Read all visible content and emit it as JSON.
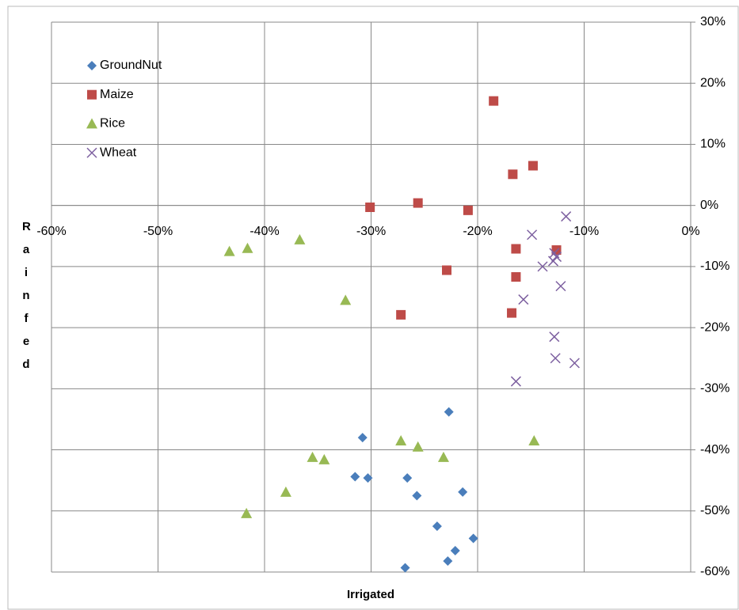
{
  "chart_data": {
    "type": "scatter",
    "x_label": "Irrigated",
    "y_label": "Rainfed",
    "xlim": [
      -60,
      0
    ],
    "ylim": [
      -60,
      30
    ],
    "xticks": [
      {
        "value": -60,
        "label": "-60%"
      },
      {
        "value": -50,
        "label": "-50%"
      },
      {
        "value": -40,
        "label": "-40%"
      },
      {
        "value": -30,
        "label": "-30%"
      },
      {
        "value": -20,
        "label": "-20%"
      },
      {
        "value": -10,
        "label": "-10%"
      },
      {
        "value": 0,
        "label": "0%"
      }
    ],
    "yticks": [
      {
        "value": -60,
        "label": "-60%"
      },
      {
        "value": -50,
        "label": "-50%"
      },
      {
        "value": -40,
        "label": "-40%"
      },
      {
        "value": -30,
        "label": "-30%"
      },
      {
        "value": -20,
        "label": "-20%"
      },
      {
        "value": -10,
        "label": "-10%"
      },
      {
        "value": 0,
        "label": "0%"
      },
      {
        "value": 10,
        "label": "10%"
      },
      {
        "value": 20,
        "label": "20%"
      },
      {
        "value": 30,
        "label": "30%"
      }
    ],
    "grid": true,
    "legend": "upper left",
    "series": [
      {
        "name": "GroundNut",
        "color": "#4a7ebb",
        "marker": "diamond",
        "x": [
          -22.7,
          -30.8,
          -31.5,
          -30.3,
          -26.6,
          -25.7,
          -21.4,
          -23.8,
          -20.4,
          -22.1,
          -22.8,
          -26.8
        ],
        "values": [
          -33.8,
          -38.0,
          -44.4,
          -44.6,
          -44.6,
          -47.5,
          -46.9,
          -52.5,
          -54.5,
          -56.5,
          -58.2,
          -59.3
        ]
      },
      {
        "name": "Maize",
        "color": "#be4b48",
        "marker": "square",
        "x": [
          -18.5,
          -14.8,
          -16.7,
          -25.6,
          -30.1,
          -20.9,
          -16.4,
          -12.6,
          -16.4,
          -22.9,
          -16.8,
          -27.2
        ],
        "values": [
          17.1,
          6.5,
          5.1,
          0.4,
          -0.3,
          -0.8,
          -7.1,
          -7.3,
          -11.7,
          -10.6,
          -17.6,
          -17.9
        ]
      },
      {
        "name": "Rice",
        "color": "#98b954",
        "marker": "triangle",
        "x": [
          -43.3,
          -41.6,
          -36.7,
          -32.4,
          -27.2,
          -25.6,
          -35.5,
          -34.4,
          -23.2,
          -14.7,
          -38.0,
          -41.7
        ],
        "values": [
          -7.5,
          -7.0,
          -5.6,
          -15.5,
          -38.5,
          -39.5,
          -41.2,
          -41.6,
          -41.2,
          -38.5,
          -46.9,
          -50.4
        ]
      },
      {
        "name": "Wheat",
        "color": "#7d60a0",
        "marker": "x",
        "x": [
          -11.7,
          -14.9,
          -12.8,
          -12.6,
          -12.9,
          -13.9,
          -12.2,
          -15.7,
          -12.8,
          -12.7,
          -10.9,
          -16.4
        ],
        "values": [
          -1.8,
          -4.8,
          -7.8,
          -8.4,
          -9.1,
          -10.0,
          -13.2,
          -15.4,
          -21.5,
          -25.0,
          -25.8,
          -28.8
        ]
      }
    ]
  }
}
